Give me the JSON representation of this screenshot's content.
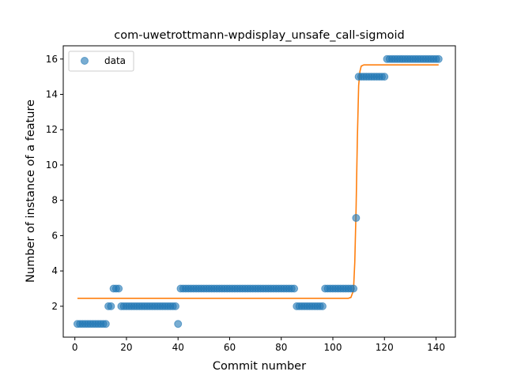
{
  "chart_data": {
    "type": "scatter",
    "title": "com-uwetrottmann-wpdisplay_unsafe_call-sigmoid",
    "xlabel": "Commit number",
    "ylabel": "Number of instance of a feature",
    "xlim": [
      -4.5,
      147.5
    ],
    "ylim": [
      0.25,
      16.75
    ],
    "xticks": [
      0,
      20,
      40,
      60,
      80,
      100,
      120,
      140
    ],
    "yticks": [
      2,
      4,
      6,
      8,
      10,
      12,
      14,
      16
    ],
    "grid": false,
    "legend": {
      "placement": "top-left",
      "entries": [
        "data"
      ]
    },
    "colors": {
      "data": "#1f77b4",
      "fit": "#ff7f0e"
    },
    "series": [
      {
        "name": "data",
        "kind": "scatter",
        "segments": [
          {
            "x_start": 1,
            "x_end": 12,
            "y": 1
          },
          {
            "x_start": 13,
            "x_end": 14,
            "y": 2
          },
          {
            "x_start": 15,
            "x_end": 17,
            "y": 3
          },
          {
            "x_start": 18,
            "x_end": 39,
            "y": 2
          },
          {
            "x_start": 40,
            "x_end": 40,
            "y": 1
          },
          {
            "x_start": 41,
            "x_end": 85,
            "y": 3
          },
          {
            "x_start": 86,
            "x_end": 96,
            "y": 2
          },
          {
            "x_start": 97,
            "x_end": 108,
            "y": 3
          },
          {
            "x_start": 109,
            "x_end": 109,
            "y": 7
          },
          {
            "x_start": 110,
            "x_end": 120,
            "y": 15
          },
          {
            "x_start": 121,
            "x_end": 141,
            "y": 16
          }
        ]
      },
      {
        "kind": "line",
        "x": [
          1,
          100,
          106,
          107,
          108,
          108.5,
          109,
          109.5,
          110,
          110.5,
          111,
          112,
          141
        ],
        "y": [
          2.45,
          2.45,
          2.45,
          2.5,
          2.9,
          4.5,
          7.5,
          11.5,
          14.5,
          15.3,
          15.6,
          15.67,
          15.67
        ]
      }
    ]
  }
}
